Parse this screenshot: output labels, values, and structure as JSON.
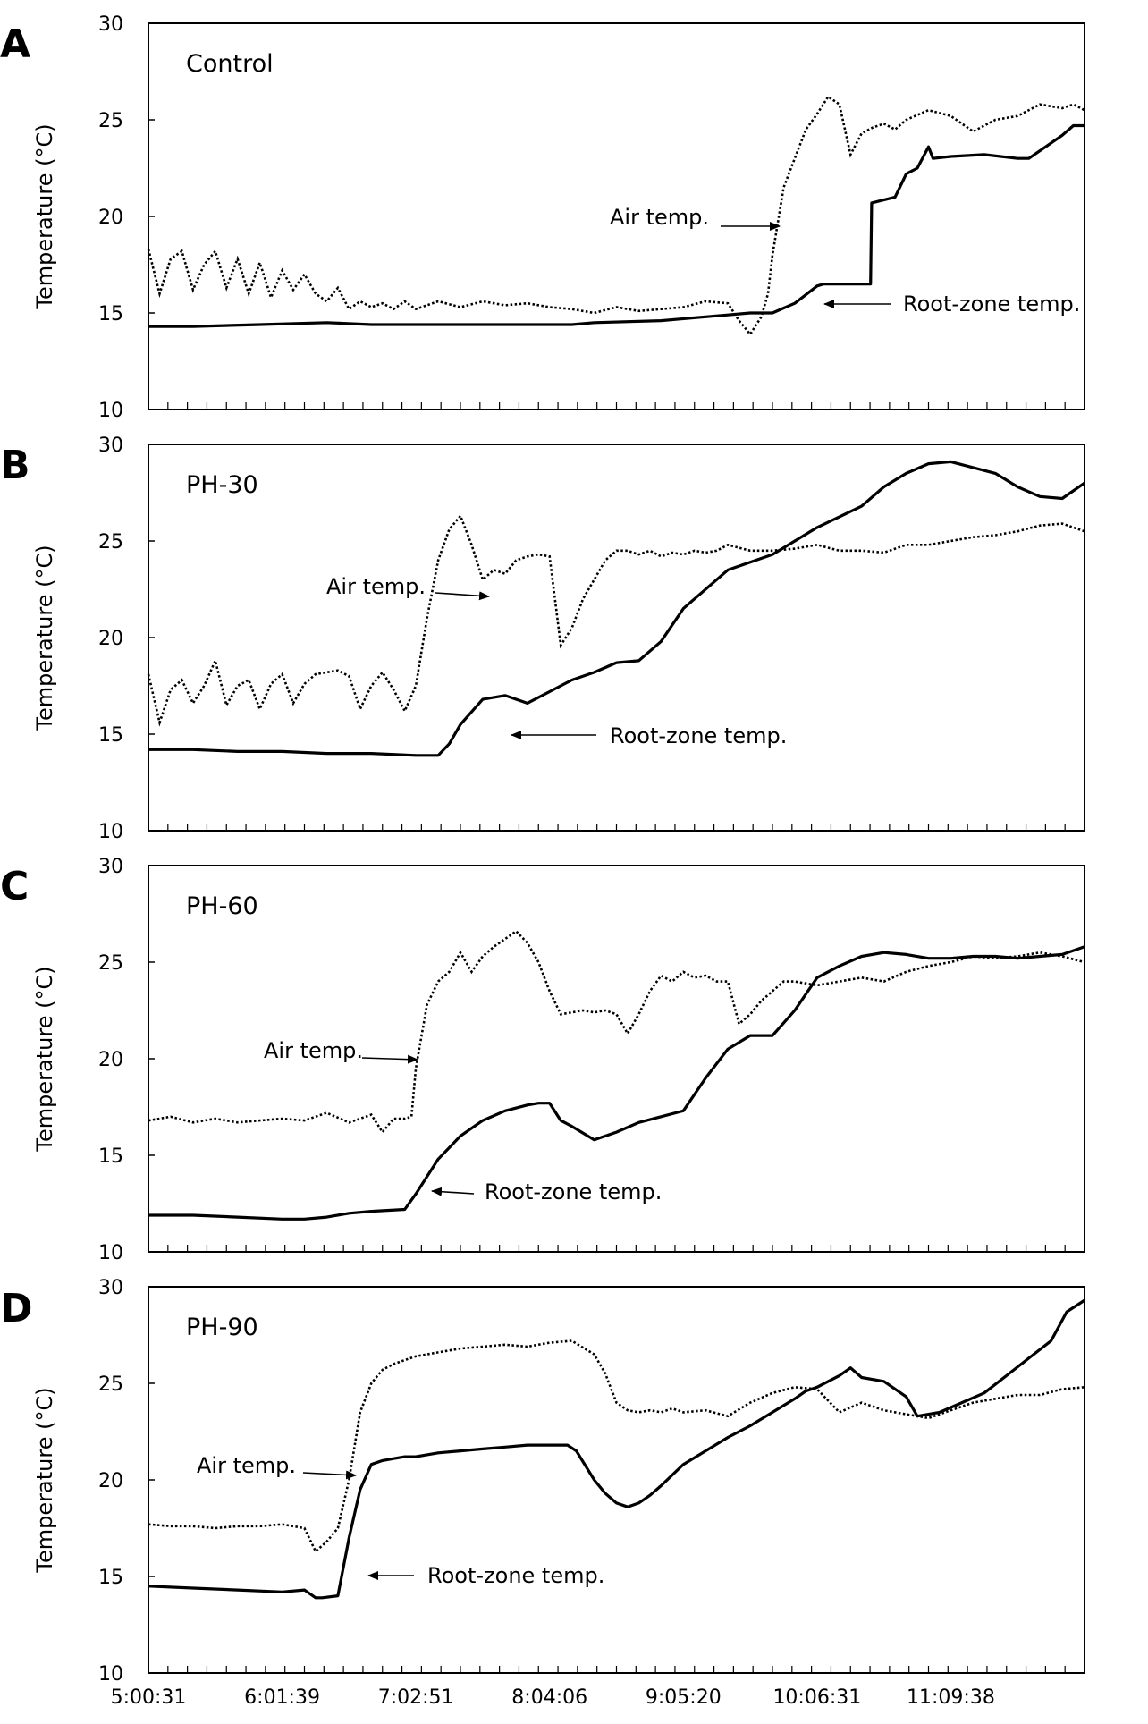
{
  "chart_data": [
    {
      "type": "line",
      "panel": "A",
      "title": "Control",
      "xlabel": "",
      "ylabel": "Temperature (°C)",
      "ylim": [
        10,
        30
      ],
      "yticks": [
        10,
        15,
        20,
        25,
        30
      ],
      "xlim": [
        0,
        420
      ],
      "xtick_labels": [
        "5:00:31",
        "6:01:39",
        "7:02:51",
        "8:04:06",
        "9:05:20",
        "10:06:31",
        "11:09:38"
      ],
      "grid": false,
      "legend": "none",
      "annotations": [
        {
          "text": "Air temp.",
          "series": "Air temp.",
          "x": 283,
          "y": 19.5
        },
        {
          "text": "Root-zone temp.",
          "series": "Root-zone temp.",
          "x": 303,
          "y": 15.3
        }
      ],
      "series": [
        {
          "name": "Air temp.",
          "style": "dotted",
          "x": [
            0,
            5,
            10,
            15,
            20,
            25,
            30,
            35,
            40,
            45,
            50,
            55,
            60,
            65,
            70,
            75,
            80,
            85,
            90,
            95,
            100,
            105,
            110,
            115,
            120,
            130,
            140,
            150,
            160,
            170,
            180,
            190,
            200,
            210,
            220,
            230,
            240,
            250,
            260,
            265,
            270,
            275,
            278,
            280,
            285,
            290,
            295,
            300,
            305,
            310,
            315,
            320,
            325,
            330,
            335,
            340,
            350,
            360,
            370,
            380,
            390,
            400,
            410,
            415,
            420
          ],
          "y": [
            18.3,
            16.0,
            17.8,
            18.2,
            16.2,
            17.5,
            18.2,
            16.3,
            17.8,
            16.0,
            17.6,
            15.8,
            17.2,
            16.2,
            17.0,
            16.0,
            15.6,
            16.3,
            15.2,
            15.6,
            15.3,
            15.5,
            15.2,
            15.6,
            15.2,
            15.6,
            15.3,
            15.6,
            15.4,
            15.5,
            15.3,
            15.2,
            15.0,
            15.3,
            15.1,
            15.2,
            15.3,
            15.6,
            15.5,
            14.6,
            13.9,
            14.8,
            16.0,
            18.0,
            21.5,
            23.0,
            24.5,
            25.3,
            26.2,
            25.8,
            23.2,
            24.3,
            24.6,
            24.8,
            24.5,
            25.0,
            25.5,
            25.2,
            24.4,
            25.0,
            25.2,
            25.8,
            25.6,
            25.8,
            25.5
          ]
        },
        {
          "name": "Root-zone temp.",
          "style": "solid",
          "x": [
            0,
            20,
            50,
            80,
            100,
            130,
            160,
            190,
            200,
            230,
            250,
            260,
            270,
            280,
            290,
            300,
            303,
            320,
            324,
            324.5,
            335,
            340,
            345,
            350,
            352,
            360,
            375,
            390,
            395,
            410,
            415,
            420
          ],
          "y": [
            14.3,
            14.3,
            14.4,
            14.5,
            14.4,
            14.4,
            14.4,
            14.4,
            14.5,
            14.6,
            14.8,
            14.9,
            15.0,
            15.0,
            15.5,
            16.4,
            16.5,
            16.5,
            16.5,
            20.7,
            21.0,
            22.2,
            22.5,
            23.6,
            23.0,
            23.1,
            23.2,
            23.0,
            23.0,
            24.2,
            24.7,
            24.7
          ]
        }
      ]
    },
    {
      "type": "line",
      "panel": "B",
      "title": "PH-30",
      "xlabel": "",
      "ylabel": "Temperature (°C)",
      "ylim": [
        10,
        30
      ],
      "yticks": [
        10,
        15,
        20,
        25,
        30
      ],
      "xlim": [
        0,
        420
      ],
      "xtick_labels": [
        "5:00:31",
        "6:01:39",
        "7:02:51",
        "8:04:06",
        "9:05:20",
        "10:06:31",
        "11:09:38"
      ],
      "grid": false,
      "legend": "none",
      "annotations": [
        {
          "text": "Air temp.",
          "series": "Air temp.",
          "x": 153,
          "y": 22.2
        },
        {
          "text": "Root-zone temp.",
          "series": "Root-zone temp.",
          "x": 160,
          "y": 14.8
        }
      ],
      "series": [
        {
          "name": "Air temp.",
          "style": "dotted",
          "x": [
            0,
            5,
            10,
            15,
            20,
            25,
            30,
            35,
            40,
            45,
            50,
            55,
            60,
            65,
            70,
            75,
            80,
            85,
            90,
            95,
            100,
            105,
            110,
            115,
            120,
            125,
            130,
            135,
            140,
            145,
            150,
            155,
            160,
            165,
            170,
            175,
            180,
            185,
            190,
            195,
            200,
            205,
            210,
            215,
            220,
            225,
            230,
            235,
            240,
            245,
            250,
            255,
            260,
            270,
            280,
            290,
            300,
            310,
            320,
            330,
            340,
            350,
            360,
            370,
            380,
            390,
            400,
            410,
            420
          ],
          "y": [
            18.1,
            15.6,
            17.3,
            17.8,
            16.6,
            17.5,
            18.8,
            16.5,
            17.5,
            17.8,
            16.3,
            17.6,
            18.1,
            16.6,
            17.6,
            18.1,
            18.2,
            18.3,
            18.0,
            16.3,
            17.5,
            18.2,
            17.3,
            16.2,
            17.5,
            21.0,
            24.0,
            25.6,
            26.3,
            24.8,
            23.0,
            23.5,
            23.3,
            24.0,
            24.2,
            24.3,
            24.2,
            19.6,
            20.5,
            22.0,
            23.0,
            24.0,
            24.5,
            24.5,
            24.3,
            24.5,
            24.2,
            24.4,
            24.3,
            24.5,
            24.4,
            24.5,
            24.8,
            24.5,
            24.5,
            24.6,
            24.8,
            24.5,
            24.5,
            24.4,
            24.8,
            24.8,
            25.0,
            25.2,
            25.3,
            25.5,
            25.8,
            25.9,
            25.5
          ]
        },
        {
          "name": "Root-zone temp.",
          "style": "solid",
          "x": [
            0,
            20,
            40,
            60,
            80,
            100,
            120,
            130,
            135,
            140,
            150,
            160,
            170,
            180,
            190,
            200,
            210,
            220,
            230,
            240,
            260,
            280,
            300,
            320,
            330,
            340,
            350,
            360,
            370,
            380,
            390,
            400,
            410,
            420
          ],
          "y": [
            14.2,
            14.2,
            14.1,
            14.1,
            14.0,
            14.0,
            13.9,
            13.9,
            14.5,
            15.5,
            16.8,
            17.0,
            16.6,
            17.2,
            17.8,
            18.2,
            18.7,
            18.8,
            19.8,
            21.5,
            23.5,
            24.3,
            25.7,
            26.8,
            27.8,
            28.5,
            29.0,
            29.1,
            28.8,
            28.5,
            27.8,
            27.3,
            27.2,
            28.0
          ]
        }
      ]
    },
    {
      "type": "line",
      "panel": "C",
      "title": "PH-60",
      "xlabel": "",
      "ylabel": "Temperature (°C)",
      "ylim": [
        10,
        30
      ],
      "yticks": [
        10,
        15,
        20,
        25,
        30
      ],
      "xlim": [
        0,
        420
      ],
      "xtick_labels": [
        "5:00:31",
        "6:01:39",
        "7:02:51",
        "8:04:06",
        "9:05:20",
        "10:06:31",
        "11:09:38"
      ],
      "grid": false,
      "legend": "none",
      "annotations": [
        {
          "text": "Air temp.",
          "series": "Air temp.",
          "x": 118,
          "y": 20.0
        },
        {
          "text": "Root-zone temp.",
          "series": "Root-zone temp.",
          "x": 127,
          "y": 12.9
        }
      ],
      "series": [
        {
          "name": "Air temp.",
          "style": "dotted",
          "x": [
            0,
            10,
            20,
            30,
            40,
            50,
            60,
            70,
            80,
            90,
            100,
            105,
            110,
            115,
            118,
            120,
            125,
            130,
            135,
            140,
            145,
            150,
            155,
            160,
            165,
            170,
            175,
            180,
            185,
            190,
            195,
            200,
            205,
            210,
            215,
            220,
            225,
            230,
            235,
            240,
            245,
            250,
            255,
            260,
            265,
            270,
            275,
            280,
            285,
            290,
            300,
            310,
            320,
            330,
            340,
            350,
            360,
            370,
            380,
            390,
            400,
            410,
            420
          ],
          "y": [
            16.8,
            17.0,
            16.7,
            16.9,
            16.7,
            16.8,
            16.9,
            16.8,
            17.2,
            16.7,
            17.1,
            16.2,
            16.9,
            16.9,
            17.0,
            19.5,
            22.8,
            24.0,
            24.5,
            25.5,
            24.5,
            25.3,
            25.8,
            26.2,
            26.6,
            26.0,
            25.0,
            23.5,
            22.3,
            22.4,
            22.5,
            22.4,
            22.5,
            22.3,
            21.3,
            22.3,
            23.5,
            24.3,
            24.0,
            24.5,
            24.2,
            24.3,
            24.0,
            24.0,
            21.8,
            22.3,
            23.0,
            23.5,
            24.0,
            24.0,
            23.8,
            24.0,
            24.2,
            24.0,
            24.5,
            24.8,
            25.0,
            25.3,
            25.2,
            25.3,
            25.5,
            25.3,
            25.0
          ]
        },
        {
          "name": "Root-zone temp.",
          "style": "solid",
          "x": [
            0,
            20,
            40,
            60,
            70,
            80,
            90,
            100,
            115,
            120,
            130,
            140,
            150,
            160,
            170,
            175,
            180,
            185,
            190,
            200,
            210,
            220,
            230,
            240,
            250,
            260,
            270,
            280,
            290,
            300,
            310,
            320,
            330,
            340,
            350,
            360,
            370,
            380,
            390,
            400,
            410,
            420
          ],
          "y": [
            11.9,
            11.9,
            11.8,
            11.7,
            11.7,
            11.8,
            12.0,
            12.1,
            12.2,
            13.0,
            14.8,
            16.0,
            16.8,
            17.3,
            17.6,
            17.7,
            17.7,
            16.8,
            16.5,
            15.8,
            16.2,
            16.7,
            17.0,
            17.3,
            19.0,
            20.5,
            21.2,
            21.2,
            22.5,
            24.2,
            24.8,
            25.3,
            25.5,
            25.4,
            25.2,
            25.2,
            25.3,
            25.3,
            25.2,
            25.3,
            25.4,
            25.8
          ]
        }
      ]
    },
    {
      "type": "line",
      "panel": "D",
      "title": "PH-90",
      "xlabel": "",
      "ylabel": "Temperature (°C)",
      "ylim": [
        10,
        30
      ],
      "yticks": [
        10,
        15,
        20,
        25,
        30
      ],
      "xlim": [
        0,
        420
      ],
      "xtick_labels": [
        "5:00:31",
        "6:01:39",
        "7:02:51",
        "8:04:06",
        "9:05:20",
        "10:06:31",
        "11:09:38"
      ],
      "grid": false,
      "legend": "none",
      "annotations": [
        {
          "text": "Air temp.",
          "series": "Air temp.",
          "x": 92,
          "y": 20.2
        },
        {
          "text": "Root-zone temp.",
          "series": "Root-zone temp.",
          "x": 98,
          "y": 14.6
        }
      ],
      "series": [
        {
          "name": "Air temp.",
          "style": "dotted",
          "x": [
            0,
            10,
            20,
            30,
            40,
            50,
            60,
            70,
            75,
            80,
            85,
            90,
            95,
            100,
            105,
            110,
            120,
            130,
            140,
            150,
            160,
            170,
            180,
            190,
            200,
            205,
            210,
            215,
            220,
            225,
            230,
            235,
            240,
            250,
            260,
            270,
            280,
            290,
            300,
            310,
            320,
            330,
            340,
            350,
            360,
            370,
            380,
            390,
            400,
            410,
            420
          ],
          "y": [
            17.7,
            17.6,
            17.6,
            17.5,
            17.6,
            17.6,
            17.7,
            17.5,
            16.3,
            16.8,
            17.5,
            20.0,
            23.5,
            25.0,
            25.7,
            26.0,
            26.4,
            26.6,
            26.8,
            26.9,
            27.0,
            26.9,
            27.1,
            27.2,
            26.5,
            25.5,
            24.0,
            23.6,
            23.5,
            23.6,
            23.5,
            23.7,
            23.5,
            23.6,
            23.3,
            24.0,
            24.5,
            24.8,
            24.7,
            23.5,
            24.0,
            23.6,
            23.4,
            23.2,
            23.6,
            24.0,
            24.2,
            24.4,
            24.4,
            24.7,
            24.8
          ]
        },
        {
          "name": "Root-zone temp.",
          "style": "solid",
          "x": [
            0,
            20,
            40,
            60,
            70,
            75,
            78,
            85,
            90,
            95,
            100,
            105,
            110,
            115,
            120,
            130,
            140,
            150,
            160,
            170,
            180,
            188,
            192,
            200,
            205,
            210,
            215,
            220,
            225,
            230,
            240,
            250,
            260,
            270,
            280,
            290,
            295,
            300,
            310,
            315,
            320,
            330,
            340,
            345,
            355,
            365,
            375,
            385,
            395,
            405,
            412,
            420
          ],
          "y": [
            14.5,
            14.4,
            14.3,
            14.2,
            14.3,
            13.9,
            13.9,
            14.0,
            17.0,
            19.5,
            20.8,
            21.0,
            21.1,
            21.2,
            21.2,
            21.4,
            21.5,
            21.6,
            21.7,
            21.8,
            21.8,
            21.8,
            21.5,
            20.0,
            19.3,
            18.8,
            18.6,
            18.8,
            19.2,
            19.7,
            20.8,
            21.5,
            22.2,
            22.8,
            23.5,
            24.2,
            24.6,
            24.8,
            25.4,
            25.8,
            25.3,
            25.1,
            24.3,
            23.3,
            23.5,
            24.0,
            24.5,
            25.4,
            26.3,
            27.2,
            28.7,
            29.3
          ]
        }
      ]
    }
  ]
}
